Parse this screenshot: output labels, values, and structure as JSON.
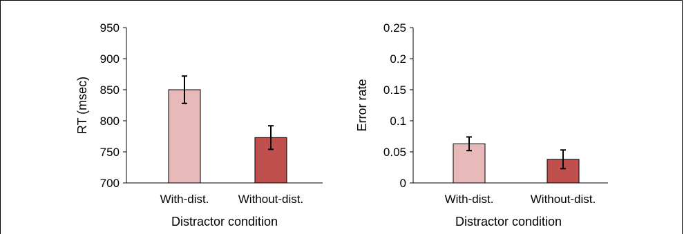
{
  "chart_data": [
    {
      "type": "bar",
      "categories": [
        "With-dist.",
        "Without-dist."
      ],
      "values": [
        850,
        773
      ],
      "error": [
        22,
        19
      ],
      "colors": [
        "#E8B9B9",
        "#C0504D"
      ],
      "xlabel": "Distractor condition",
      "ylabel": "RT (msec)",
      "ylim": [
        700,
        950
      ],
      "yticks": [
        "700",
        "750",
        "800",
        "850",
        "900",
        "950"
      ]
    },
    {
      "type": "bar",
      "categories": [
        "With-dist.",
        "Without-dist."
      ],
      "values": [
        0.063,
        0.038
      ],
      "error": [
        0.011,
        0.015
      ],
      "colors": [
        "#E8B9B9",
        "#C0504D"
      ],
      "xlabel": "Distractor condition",
      "ylabel": "Error rate",
      "ylim": [
        0,
        0.25
      ],
      "yticks": [
        "0",
        "0.05",
        "0.1",
        "0.15",
        "0.2",
        "0.25"
      ]
    }
  ]
}
